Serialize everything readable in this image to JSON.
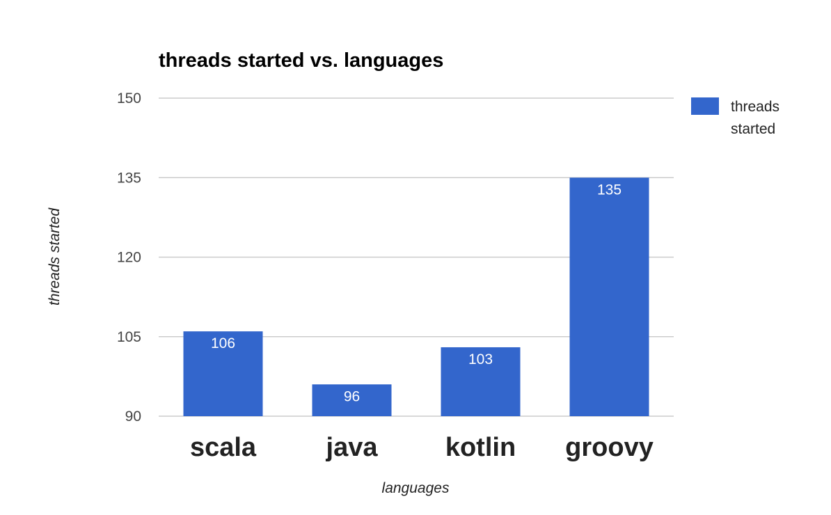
{
  "chart_data": {
    "type": "bar",
    "title": "threads started vs. languages",
    "xlabel": "languages",
    "ylabel": "threads started",
    "categories": [
      "scala",
      "java",
      "kotlin",
      "groovy"
    ],
    "series": [
      {
        "name": "threads started",
        "values": [
          106,
          96,
          103,
          135
        ],
        "color": "#3366cc"
      }
    ],
    "data_labels": [
      "106",
      "96",
      "103",
      "135"
    ],
    "ylim": [
      90,
      150
    ],
    "yticks": [
      "90",
      "105",
      "120",
      "135",
      "150"
    ],
    "legend": {
      "position": "right",
      "lines": [
        "threads",
        "started"
      ]
    },
    "grid": true,
    "gridline_color": "#cccccc"
  }
}
